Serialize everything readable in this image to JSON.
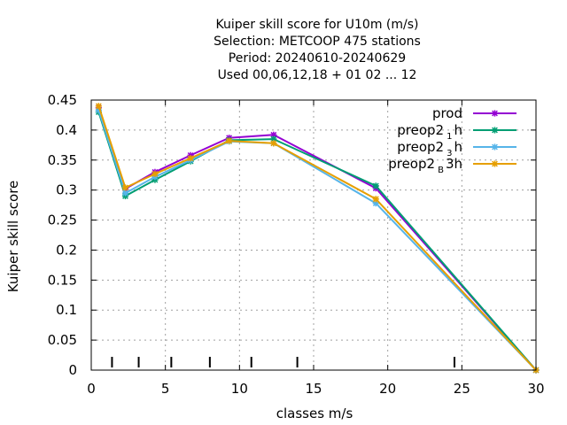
{
  "chart_data": {
    "type": "line",
    "title_lines": [
      "Kuiper skill score  for U10m (m/s)",
      "Selection: METCOOP    475 stations",
      "Period: 20240610-20240629",
      "Used  00,06,12,18 + 01 02 ... 12"
    ],
    "xlabel": "classes m/s",
    "ylabel": "Kuiper skill score",
    "xlim": [
      0,
      30
    ],
    "ylim": [
      0,
      0.45
    ],
    "x_ticks": [
      "0",
      "5",
      "10",
      "15",
      "20",
      "25",
      "30"
    ],
    "y_ticks": [
      "0",
      "0.05",
      "0.1",
      "0.15",
      "0.2",
      "0.25",
      "0.3",
      "0.35",
      "0.4",
      "0.45"
    ],
    "grid": true,
    "legend_position": "top-right",
    "class_markers_x": [
      1.4,
      3.2,
      5.4,
      8.0,
      10.8,
      13.9,
      24.5
    ],
    "series": [
      {
        "name": "prod",
        "legend": {
          "main": "prod",
          "sub": "",
          "suffix": ""
        },
        "color": "#9400d3",
        "marker": "star",
        "x": [
          0.5,
          2.3,
          4.3,
          6.7,
          9.3,
          12.3,
          19.2,
          30.0
        ],
        "y": [
          0.437,
          0.302,
          0.33,
          0.358,
          0.387,
          0.392,
          0.303,
          0.0
        ]
      },
      {
        "name": "preop2 1 h",
        "legend": {
          "main": "preop2",
          "sub": "1",
          "suffix": "h"
        },
        "color": "#009e73",
        "marker": "star",
        "x": [
          0.5,
          2.3,
          4.3,
          6.7,
          9.3,
          12.3,
          19.2,
          30.0
        ],
        "y": [
          0.43,
          0.29,
          0.317,
          0.348,
          0.383,
          0.385,
          0.307,
          0.0
        ]
      },
      {
        "name": "preop2 3 h",
        "legend": {
          "main": "preop2",
          "sub": "3",
          "suffix": "h"
        },
        "color": "#56b4e9",
        "marker": "star",
        "x": [
          0.5,
          2.3,
          4.3,
          6.7,
          9.3,
          12.3,
          19.2,
          30.0
        ],
        "y": [
          0.433,
          0.295,
          0.322,
          0.35,
          0.381,
          0.378,
          0.278,
          0.0
        ]
      },
      {
        "name": "preop2 B 3h",
        "legend": {
          "main": "preop2",
          "sub": "B",
          "suffix": "3h"
        },
        "color": "#e69f00",
        "marker": "star",
        "x": [
          0.5,
          2.3,
          4.3,
          6.7,
          9.3,
          12.3,
          19.2,
          30.0
        ],
        "y": [
          0.44,
          0.304,
          0.327,
          0.353,
          0.382,
          0.378,
          0.285,
          0.0
        ]
      }
    ]
  }
}
